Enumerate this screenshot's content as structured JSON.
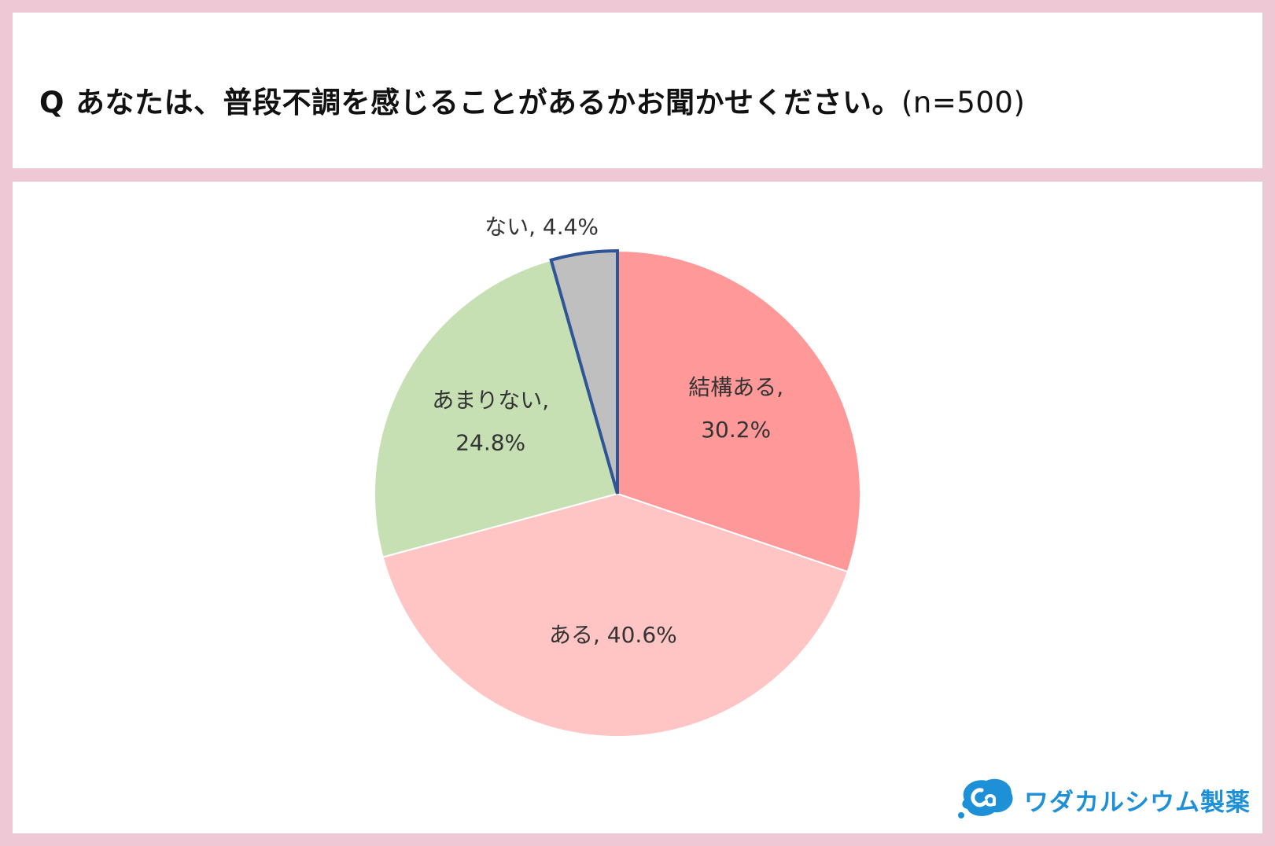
{
  "title": {
    "q": "Q",
    "text": "あなたは、普段不調を感じることがあるかお聞かせください。",
    "n": "(n=500)"
  },
  "chart_data": {
    "type": "pie",
    "start_angle_deg": 0,
    "direction": "clockwise",
    "slices": [
      {
        "label": "結構ある",
        "value": 30.2,
        "display": "30.2%",
        "color": "#ff9999"
      },
      {
        "label": "ある",
        "value": 40.6,
        "display": "40.6%",
        "color": "#ffc5c5"
      },
      {
        "label": "あまりない",
        "value": 24.8,
        "display": "24.8%",
        "color": "#c6e0b4"
      },
      {
        "label": "ない",
        "value": 4.4,
        "display": "4.4%",
        "color": "#bfbfbf",
        "outline": "#2f5597"
      }
    ]
  },
  "brand": {
    "name": "ワダカルシウム製薬",
    "color": "#1d90d8",
    "icon": "ca-bubble-logo"
  }
}
